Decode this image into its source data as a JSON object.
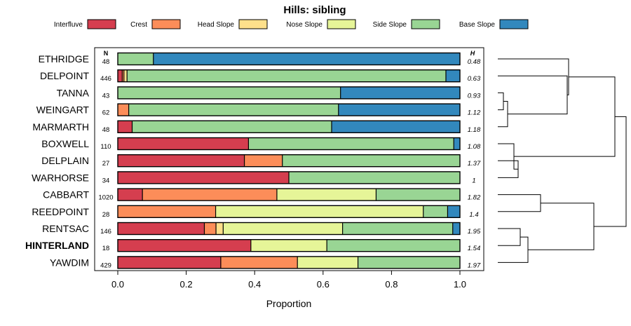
{
  "chart_data": {
    "type": "bar",
    "orientation": "horizontal",
    "stacked": true,
    "title": "Hills: sibling",
    "xlabel": "Proportion",
    "ylabel": "",
    "xlim": [
      0,
      1
    ],
    "x_ticks": [
      "0.0",
      "0.2",
      "0.4",
      "0.6",
      "0.8",
      "1.0"
    ],
    "legend": {
      "placement": "top",
      "entries": [
        {
          "label": "Interfluve",
          "color": "#d53e4f"
        },
        {
          "label": "Crest",
          "color": "#fc8d59"
        },
        {
          "label": "Head Slope",
          "color": "#fee08b"
        },
        {
          "label": "Nose Slope",
          "color": "#e6f598"
        },
        {
          "label": "Side Slope",
          "color": "#99d594"
        },
        {
          "label": "Base Slope",
          "color": "#3288bd"
        }
      ]
    },
    "n_header": "N",
    "h_header": "H",
    "rows": [
      {
        "name": "ETHRIDGE",
        "bold": false,
        "n": "48",
        "h": "0.48",
        "values": [
          0,
          0,
          0,
          0,
          0.104,
          0.896
        ]
      },
      {
        "name": "DELPOINT",
        "bold": false,
        "n": "446",
        "h": "0.63",
        "values": [
          0.013,
          0.005,
          0.009,
          0.0,
          0.932,
          0.041
        ]
      },
      {
        "name": "TANNA",
        "bold": false,
        "n": "43",
        "h": "0.93",
        "values": [
          0,
          0,
          0,
          0,
          0.651,
          0.349
        ]
      },
      {
        "name": "WEINGART",
        "bold": false,
        "n": "62",
        "h": "1.12",
        "values": [
          0,
          0.032,
          0,
          0,
          0.613,
          0.355
        ]
      },
      {
        "name": "MARMARTH",
        "bold": false,
        "n": "48",
        "h": "1.18",
        "values": [
          0.042,
          0,
          0,
          0,
          0.583,
          0.375
        ]
      },
      {
        "name": "BOXWELL",
        "bold": false,
        "n": "110",
        "h": "1.08",
        "values": [
          0.382,
          0,
          0,
          0,
          0.6,
          0.018
        ]
      },
      {
        "name": "DELPLAIN",
        "bold": false,
        "n": "27",
        "h": "1.37",
        "values": [
          0.37,
          0.111,
          0,
          0,
          0.519,
          0
        ]
      },
      {
        "name": "WARHORSE",
        "bold": false,
        "n": "34",
        "h": "1",
        "values": [
          0.5,
          0,
          0,
          0,
          0.5,
          0
        ]
      },
      {
        "name": "CABBART",
        "bold": false,
        "n": "1020",
        "h": "1.82",
        "values": [
          0.072,
          0.393,
          0,
          0.29,
          0.245,
          0
        ]
      },
      {
        "name": "REEDPOINT",
        "bold": false,
        "n": "28",
        "h": "1.4",
        "values": [
          0,
          0.286,
          0,
          0.607,
          0.071,
          0.036
        ]
      },
      {
        "name": "RENTSAC",
        "bold": false,
        "n": "146",
        "h": "1.95",
        "values": [
          0.253,
          0.034,
          0.021,
          0.349,
          0.322,
          0.021
        ]
      },
      {
        "name": "HINTERLAND",
        "bold": true,
        "n": "18",
        "h": "1.54",
        "values": [
          0.389,
          0,
          0,
          0.222,
          0.389,
          0
        ]
      },
      {
        "name": "YAWDIM",
        "bold": false,
        "n": "429",
        "h": "1.97",
        "values": [
          0.301,
          0.224,
          0,
          0.177,
          0.298,
          0
        ]
      }
    ]
  }
}
